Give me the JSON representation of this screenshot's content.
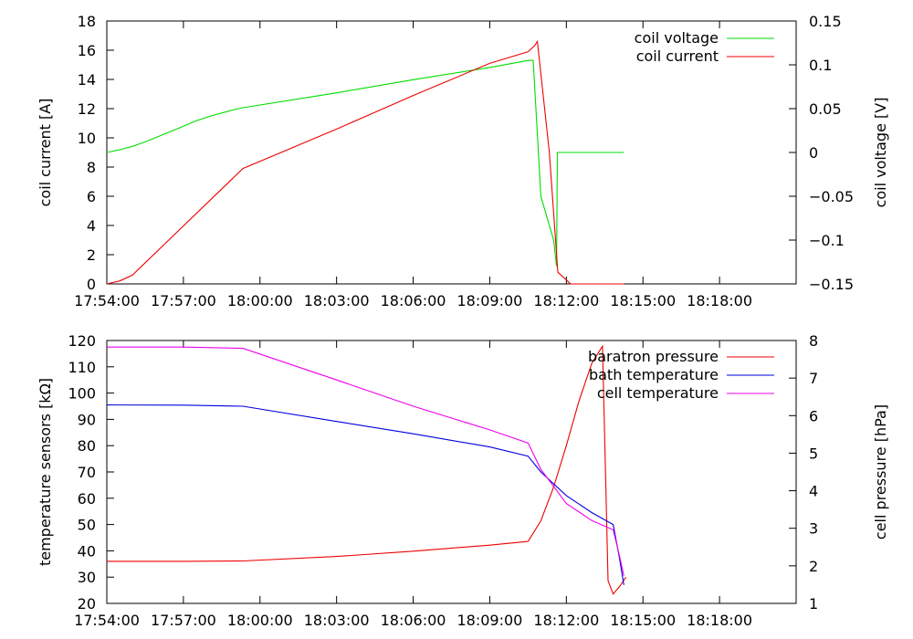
{
  "chart_data": [
    {
      "type": "line",
      "title": "",
      "xlabel": "",
      "ylabel": "coil current [A]",
      "y2label": "coil voltage [V]",
      "xlim": [
        "17:54:00",
        "18:21:00"
      ],
      "ylim": [
        0,
        18
      ],
      "y2lim": [
        -0.15,
        0.15
      ],
      "grid": false,
      "legend_position": "top-right",
      "x_ticks": [
        "17:54:00",
        "17:57:00",
        "18:00:00",
        "18:03:00",
        "18:06:00",
        "18:09:00",
        "18:12:00",
        "18:15:00",
        "18:18:00"
      ],
      "y_ticks": [
        "0",
        "2",
        "4",
        "6",
        "8",
        "10",
        "12",
        "14",
        "16",
        "18"
      ],
      "y2_ticks": [
        "-0.15",
        "-0.1",
        "-0.05",
        "0",
        "0.05",
        "0.1",
        "0.15"
      ],
      "series": [
        {
          "name": "coil voltage",
          "axis": "y2",
          "color": "#00dd00",
          "x": [
            "17:54:00",
            "17:54:30",
            "17:55:00",
            "17:55:30",
            "17:56:00",
            "17:56:30",
            "17:57:00",
            "17:57:30",
            "17:58:00",
            "17:58:30",
            "17:59:00",
            "17:59:20",
            "18:03:00",
            "18:06:00",
            "18:09:00",
            "18:10:30",
            "18:10:42",
            "18:11:00",
            "18:11:30",
            "18:11:37",
            "18:11:39",
            "18:14:15"
          ],
          "y": [
            0.0,
            0.003,
            0.007,
            0.012,
            0.018,
            0.024,
            0.03,
            0.036,
            0.041,
            0.045,
            0.049,
            0.051,
            0.068,
            0.083,
            0.097,
            0.105,
            0.105,
            -0.05,
            -0.1,
            -0.13,
            0.0,
            0.0
          ]
        },
        {
          "name": "coil current",
          "axis": "y",
          "color": "#ee0000",
          "x": [
            "17:54:00",
            "17:54:30",
            "17:55:00",
            "17:59:20",
            "18:03:00",
            "18:06:00",
            "18:09:00",
            "18:10:30",
            "18:10:45",
            "18:10:52",
            "18:11:20",
            "18:11:40",
            "18:12:10",
            "18:14:15"
          ],
          "y": [
            0.0,
            0.2,
            0.6,
            7.9,
            10.6,
            12.9,
            15.1,
            15.9,
            16.3,
            16.6,
            9.0,
            0.8,
            0.0,
            0.0
          ]
        }
      ]
    },
    {
      "type": "line",
      "title": "",
      "xlabel": "",
      "ylabel": "temperature sensors [kΩ]",
      "y2label": "cell pressure [hPa]",
      "xlim": [
        "17:54:00",
        "18:21:00"
      ],
      "ylim": [
        20,
        120
      ],
      "y2lim": [
        1,
        8
      ],
      "grid": false,
      "legend_position": "top-right",
      "x_ticks": [
        "17:54:00",
        "17:57:00",
        "18:00:00",
        "18:03:00",
        "18:06:00",
        "18:09:00",
        "18:12:00",
        "18:15:00",
        "18:18:00"
      ],
      "y_ticks": [
        "20",
        "30",
        "40",
        "50",
        "60",
        "70",
        "80",
        "90",
        "100",
        "110",
        "120"
      ],
      "y2_ticks": [
        "1",
        "2",
        "3",
        "4",
        "5",
        "6",
        "7",
        "8"
      ],
      "series": [
        {
          "name": "baratron pressure",
          "axis": "y2",
          "color": "#ee0000",
          "x": [
            "17:54:00",
            "17:57:00",
            "17:59:20",
            "18:03:00",
            "18:06:00",
            "18:09:00",
            "18:10:30",
            "18:11:00",
            "18:11:30",
            "18:12:00",
            "18:12:30",
            "18:13:00",
            "18:13:25",
            "18:13:32",
            "18:13:38",
            "18:13:50",
            "18:14:05",
            "18:14:20"
          ],
          "y": [
            2.12,
            2.12,
            2.13,
            2.25,
            2.39,
            2.55,
            2.65,
            3.2,
            4.1,
            5.2,
            6.4,
            7.4,
            7.85,
            4.5,
            1.6,
            1.25,
            1.45,
            1.7
          ]
        },
        {
          "name": "bath temperature",
          "axis": "y",
          "color": "#0000dd",
          "x": [
            "17:54:00",
            "17:57:00",
            "17:59:20",
            "18:03:00",
            "18:06:00",
            "18:09:00",
            "18:10:30",
            "18:11:00",
            "18:12:00",
            "18:13:00",
            "18:13:50",
            "18:14:05",
            "18:14:15"
          ],
          "y": [
            95.5,
            95.4,
            95.0,
            89.2,
            84.5,
            79.5,
            76.0,
            70.0,
            61.0,
            54.5,
            50.0,
            37.0,
            27.0
          ]
        },
        {
          "name": "cell temperature",
          "axis": "y",
          "color": "#ee00ee",
          "x": [
            "17:54:00",
            "17:57:00",
            "17:59:20",
            "18:03:00",
            "18:06:00",
            "18:09:00",
            "18:10:30",
            "18:11:00",
            "18:12:00",
            "18:13:00",
            "18:13:50",
            "18:14:05",
            "18:14:15"
          ],
          "y": [
            117.5,
            117.5,
            117.0,
            105.0,
            95.0,
            86.0,
            81.0,
            71.0,
            58.0,
            51.5,
            48.0,
            38.0,
            30.5
          ]
        }
      ]
    }
  ]
}
